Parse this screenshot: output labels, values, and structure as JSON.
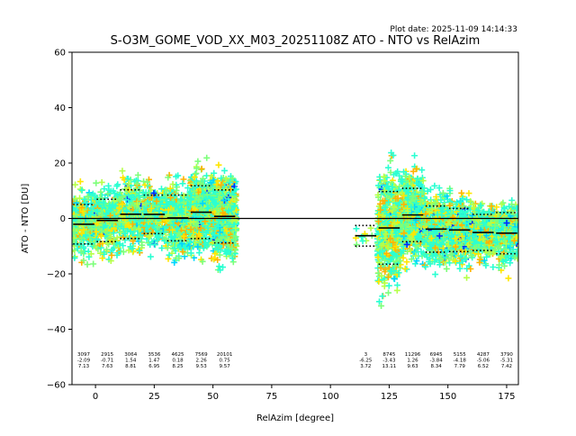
{
  "plot_date": "Plot date: 2025-11-09 14:14:33",
  "chart_data": {
    "type": "scatter",
    "title": "S-O3M_GOME_VOD_XX_M03_20251108Z ATO - NTO vs RelAzim",
    "xlabel": "RelAzim [degree]",
    "ylabel": "ATO - NTO [DU]",
    "xlim": [
      -10,
      180
    ],
    "ylim": [
      -60,
      60
    ],
    "xticks": [
      0,
      25,
      50,
      75,
      100,
      125,
      150,
      175
    ],
    "yticks": [
      -60,
      -40,
      -20,
      0,
      20,
      40,
      60
    ],
    "zero_line": 0,
    "bins": [
      {
        "x0": -10,
        "x1": 0,
        "count": "3097",
        "mean": "-2.09",
        "std": "7.13"
      },
      {
        "x0": 0,
        "x1": 10,
        "count": "2915",
        "mean": "-0.71",
        "std": "7.63"
      },
      {
        "x0": 10,
        "x1": 20,
        "count": "3064",
        "mean": "1.54",
        "std": "8.81"
      },
      {
        "x0": 20,
        "x1": 30,
        "count": "3536",
        "mean": "1.47",
        "std": "6.95"
      },
      {
        "x0": 30,
        "x1": 40,
        "count": "4625",
        "mean": "0.18",
        "std": "8.25"
      },
      {
        "x0": 40,
        "x1": 50,
        "count": "7569",
        "mean": "2.26",
        "std": "9.53"
      },
      {
        "x0": 50,
        "x1": 60,
        "count": "20101",
        "mean": "0.75",
        "std": "9.57"
      },
      {
        "x0": 110,
        "x1": 120,
        "count": "3",
        "mean": "-6.25",
        "std": "3.72"
      },
      {
        "x0": 120,
        "x1": 130,
        "count": "8745",
        "mean": "-3.43",
        "std": "13.11"
      },
      {
        "x0": 130,
        "x1": 140,
        "count": "11296",
        "mean": "1.26",
        "std": "9.63"
      },
      {
        "x0": 140,
        "x1": 150,
        "count": "6945",
        "mean": "-3.84",
        "std": "8.34"
      },
      {
        "x0": 150,
        "x1": 160,
        "count": "5155",
        "mean": "-4.18",
        "std": "7.79"
      },
      {
        "x0": 160,
        "x1": 170,
        "count": "4287",
        "mean": "-5.06",
        "std": "6.52"
      },
      {
        "x0": 170,
        "x1": 180,
        "count": "3790",
        "mean": "-5.31",
        "std": "7.42"
      }
    ],
    "point_colors": [
      "#2bffd2",
      "#7dff7a",
      "#ffe600",
      "#ffb300",
      "#00d4ff",
      "#0028ff",
      "#b6ff48"
    ]
  }
}
